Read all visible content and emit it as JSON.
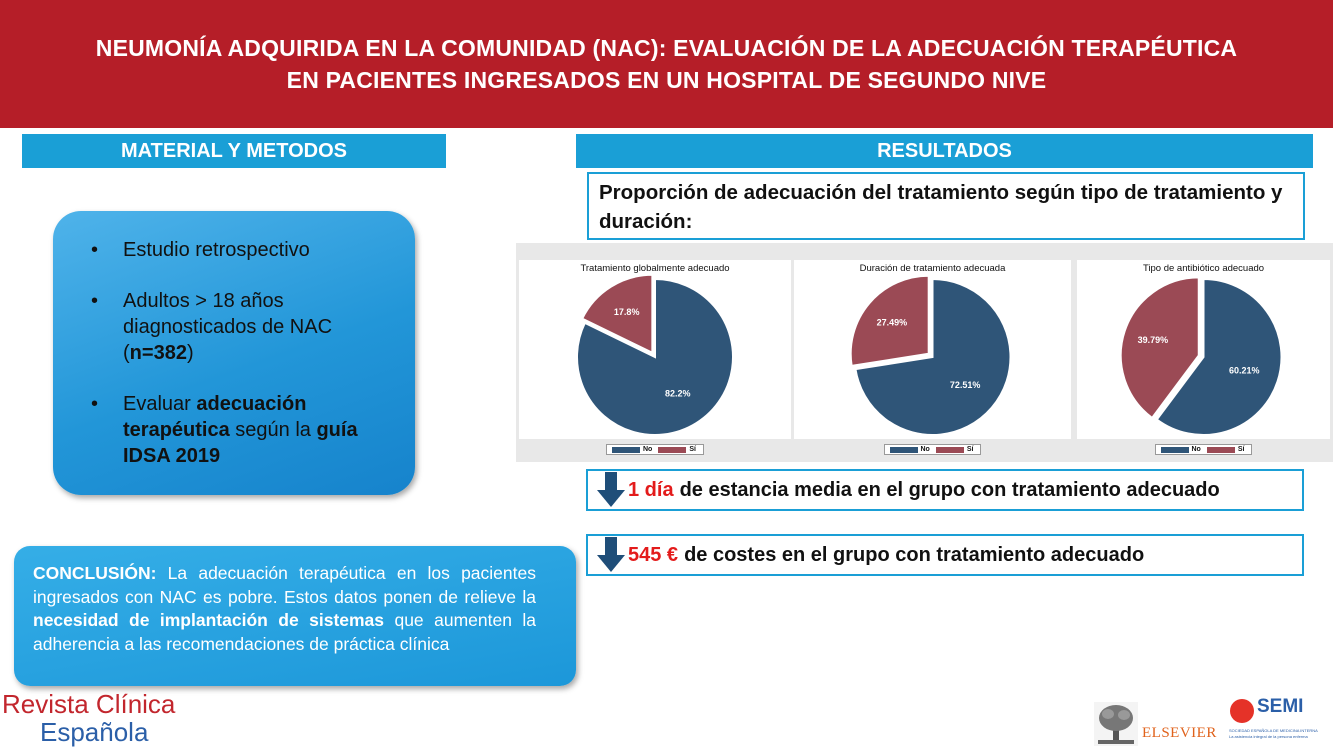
{
  "header": {
    "line1": "NEUMONÍA ADQUIRIDA EN LA COMUNIDAD (NAC): EVALUACIÓN DE LA ADECUACIÓN TERAPÉUTICA",
    "line2": "EN PACIENTES INGRESADOS EN UN HOSPITAL DE SEGUNDO NIVE"
  },
  "methods": {
    "title": "MATERIAL Y METODOS",
    "item1": "Estudio retrospectivo",
    "item2_a": "Adultos > 18 años diagnosticados de NAC (",
    "item2_b": "n=382",
    "item2_c": ")",
    "item3_a": "Evaluar ",
    "item3_b": "adecuación terapéutica",
    "item3_c": " según la ",
    "item3_d": "guía IDSA 2019"
  },
  "results": {
    "title": "RESULTADOS",
    "proportion_heading": "Proporción de adecuación del tratamiento según tipo de tratamiento y duración:"
  },
  "chart_data": [
    {
      "type": "pie",
      "title": "Tratamiento globalmente adecuado",
      "categories": [
        "No",
        "Sí"
      ],
      "values": [
        82.2,
        17.8
      ],
      "labels": [
        "82.2%",
        "17.8%"
      ],
      "colors": [
        "#2f5578",
        "#9b4a55"
      ],
      "legend": "bottom"
    },
    {
      "type": "pie",
      "title": "Duración de tratamiento adecuada",
      "categories": [
        "No",
        "Sí"
      ],
      "values": [
        72.51,
        27.49
      ],
      "labels": [
        "72.51%",
        "27.49%"
      ],
      "colors": [
        "#2f5578",
        "#9b4a55"
      ],
      "legend": "bottom"
    },
    {
      "type": "pie",
      "title": "Tipo de antibiótico adecuado",
      "categories": [
        "No",
        "Sí"
      ],
      "values": [
        60.21,
        39.79
      ],
      "labels": [
        "60.21%",
        "39.79%"
      ],
      "colors": [
        "#2f5578",
        "#9b4a55"
      ],
      "legend": "bottom"
    }
  ],
  "stats": {
    "stat1_value": "1 día",
    "stat1_text": "de estancia media en el grupo con tratamiento adecuado",
    "stat2_value": "545 €",
    "stat2_text": "de costes en el grupo con tratamiento adecuado"
  },
  "conclusion": {
    "label": "CONCLUSIÓN:",
    "text_a": " La adecuación terapéutica en los pacientes ingresados con NAC es pobre. Estos datos ponen de relieve la ",
    "text_b": "necesidad de implantación de sistemas",
    "text_c": " que aumenten la adherencia a las recomendaciones de práctica clínica"
  },
  "footer": {
    "revista_line1": "Revista Clínica",
    "revista_line2": "Española",
    "elsevier": "ELSEVIER",
    "semi": "SEMI",
    "semi_sub1": "SOCIEDAD ESPAÑOLA DE MEDICINA INTERNA",
    "semi_sub2": "La asistencia integral de la persona enferma"
  }
}
